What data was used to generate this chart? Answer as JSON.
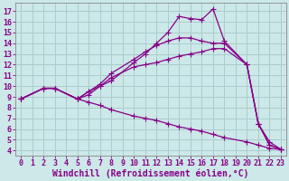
{
  "background_color": "#cce8e8",
  "grid_color": "#aacccc",
  "line_color": "#880088",
  "marker": "+",
  "markersize": 4,
  "linewidth": 0.9,
  "xlabel": "Windchill (Refroidissement éolien,°C)",
  "xlabel_fontsize": 7,
  "tick_fontsize": 6,
  "xlim": [
    -0.5,
    23.5
  ],
  "ylim": [
    3.5,
    17.8
  ],
  "xticks": [
    0,
    1,
    2,
    3,
    4,
    5,
    6,
    7,
    8,
    9,
    10,
    11,
    12,
    13,
    14,
    15,
    16,
    17,
    18,
    19,
    20,
    21,
    22,
    23
  ],
  "yticks": [
    4,
    5,
    6,
    7,
    8,
    9,
    10,
    11,
    12,
    13,
    14,
    15,
    16,
    17
  ],
  "lines": [
    {
      "x": [
        0,
        2,
        3,
        5,
        6,
        7,
        8,
        10,
        11,
        12,
        13,
        14,
        15,
        16,
        17,
        18,
        20,
        21,
        22,
        23
      ],
      "y": [
        8.8,
        9.8,
        9.8,
        8.8,
        9.5,
        10.0,
        10.5,
        12.2,
        13.0,
        14.0,
        15.0,
        16.5,
        16.3,
        16.2,
        17.2,
        14.2,
        12.0,
        6.5,
        4.5,
        4.1
      ]
    },
    {
      "x": [
        0,
        2,
        3,
        5,
        6,
        7,
        8,
        10,
        11,
        12,
        13,
        14,
        15,
        16,
        17,
        18,
        20,
        21,
        22,
        23
      ],
      "y": [
        8.8,
        9.8,
        9.8,
        8.8,
        9.5,
        10.2,
        11.2,
        12.5,
        13.2,
        13.8,
        14.2,
        14.5,
        14.5,
        14.2,
        14.0,
        14.0,
        12.0,
        6.5,
        4.5,
        4.1
      ]
    },
    {
      "x": [
        0,
        2,
        3,
        5,
        6,
        7,
        8,
        10,
        11,
        12,
        13,
        14,
        15,
        16,
        17,
        18,
        20,
        21,
        22,
        23
      ],
      "y": [
        8.8,
        9.8,
        9.8,
        8.8,
        9.2,
        10.0,
        10.8,
        11.8,
        12.0,
        12.2,
        12.5,
        12.8,
        13.0,
        13.2,
        13.5,
        13.5,
        12.0,
        6.5,
        4.8,
        4.1
      ]
    },
    {
      "x": [
        0,
        2,
        3,
        5,
        6,
        7,
        8,
        10,
        11,
        12,
        13,
        14,
        15,
        16,
        17,
        18,
        20,
        21,
        22,
        23
      ],
      "y": [
        8.8,
        9.8,
        9.8,
        8.8,
        8.5,
        8.2,
        7.8,
        7.2,
        7.0,
        6.8,
        6.5,
        6.2,
        6.0,
        5.8,
        5.5,
        5.2,
        4.8,
        4.5,
        4.2,
        4.1
      ]
    }
  ]
}
